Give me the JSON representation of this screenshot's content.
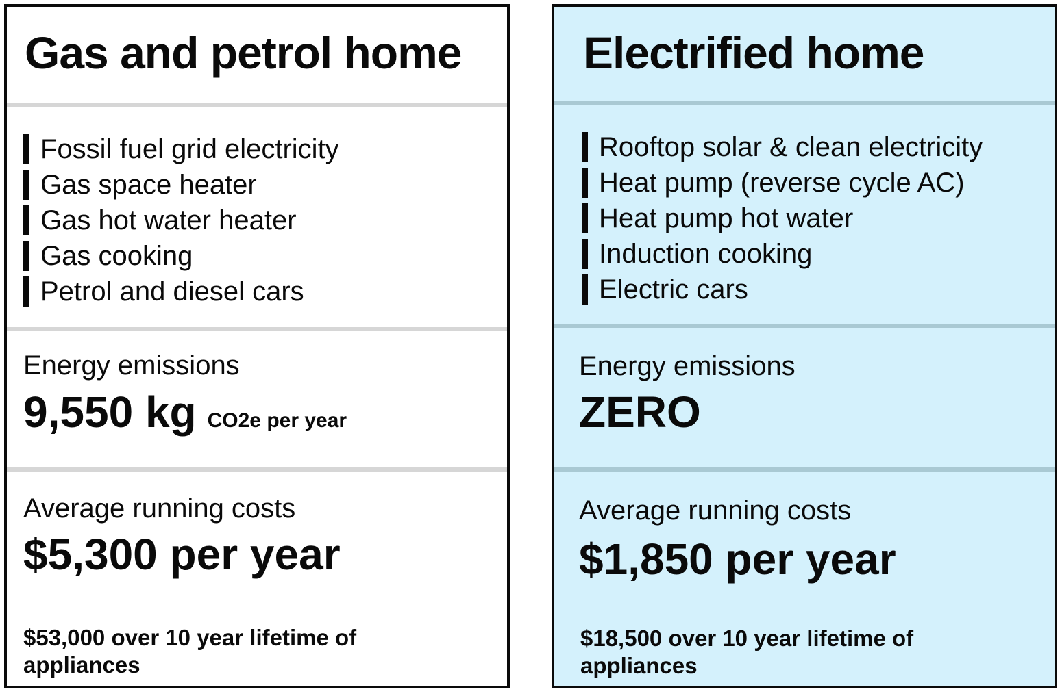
{
  "panels": [
    {
      "title": "Gas and petrol home",
      "features": [
        "Fossil fuel grid electricity",
        "Gas space heater",
        "Gas hot water heater",
        "Gas cooking",
        "Petrol and diesel cars"
      ],
      "emissions_label": "Energy emissions",
      "emissions_value": "9,550 kg",
      "emissions_unit": "CO2e per year",
      "costs_label": "Average running costs",
      "costs_value": "$5,300 per year",
      "lifetime_note": "$53,000 over 10 year lifetime of appliances",
      "background_color": "#ffffff"
    },
    {
      "title": "Electrified home",
      "features": [
        "Rooftop solar & clean electricity",
        "Heat pump (reverse cycle AC)",
        "Heat pump hot water",
        "Induction cooking",
        "Electric cars"
      ],
      "emissions_label": "Energy emissions",
      "emissions_value": "ZERO",
      "costs_label": "Average running costs",
      "costs_value": "$1,850 per year",
      "lifetime_note": "$18,500 over 10 year lifetime of appliances",
      "background_color": "#d4f1fc"
    }
  ]
}
